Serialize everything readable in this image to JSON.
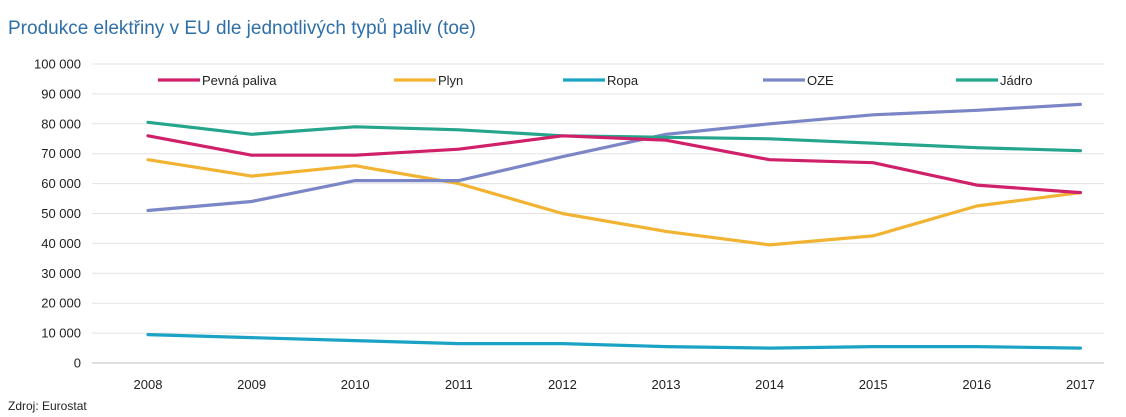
{
  "chart_data": {
    "type": "line",
    "title": "Produkce elektřiny v EU dle jednotlivých typů paliv (toe)",
    "source": "Zdroj: Eurostat",
    "x": [
      "2008",
      "2009",
      "2010",
      "2011",
      "2012",
      "2013",
      "2014",
      "2015",
      "2016",
      "2017"
    ],
    "ylim": [
      0,
      100000
    ],
    "yticks": [
      "0",
      "10 000",
      "20 000",
      "30 000",
      "40 000",
      "50 000",
      "60 000",
      "70 000",
      "80 000",
      "90 000",
      "100 000"
    ],
    "grid": true,
    "legend_position": "top",
    "series": [
      {
        "name": "Pevná paliva",
        "color": "#d0206a",
        "values": [
          76000,
          69500,
          69500,
          71500,
          76000,
          74500,
          68000,
          67000,
          59500,
          57000
        ]
      },
      {
        "name": "Plyn",
        "color": "#f2b332",
        "values": [
          68000,
          62500,
          66000,
          60000,
          50000,
          44000,
          39500,
          42500,
          52500,
          57000
        ]
      },
      {
        "name": "Ropa",
        "color": "#1aa3c4",
        "values": [
          9500,
          8500,
          7500,
          6500,
          6500,
          5500,
          5000,
          5500,
          5500,
          5000
        ]
      },
      {
        "name": "OZE",
        "color": "#7b86c6",
        "values": [
          51000,
          54000,
          61000,
          61000,
          69000,
          76500,
          80000,
          83000,
          84500,
          86500
        ]
      },
      {
        "name": "Jádro",
        "color": "#25a58c",
        "values": [
          80500,
          76500,
          79000,
          78000,
          76000,
          75500,
          75000,
          73500,
          72000,
          71000
        ]
      }
    ]
  }
}
